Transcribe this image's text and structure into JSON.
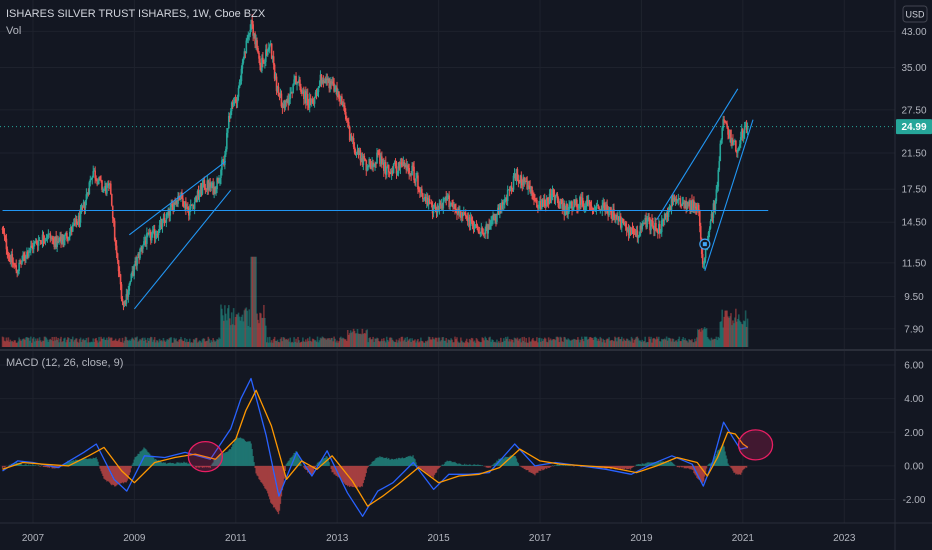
{
  "header": {
    "title": "ISHARES SILVER TRUST ISHARES, 1W, Cboe BZX",
    "volume_label": "Vol",
    "currency": "USD"
  },
  "macd_panel": {
    "label": "MACD (12, 26, close, 9)"
  },
  "current_price": {
    "value": "24.99",
    "numeric": 24.99,
    "color": "#26a69a"
  },
  "colors": {
    "background": "#131722",
    "up": "#26a69a",
    "down": "#ef5350",
    "macd_line": "#2962ff",
    "signal_line": "#ff9800",
    "trendline": "#2196f3",
    "highlight": "#e91e63"
  },
  "chart_data": [
    {
      "type": "candlestick",
      "title": "ISHARES SILVER TRUST ISHARES, 1W, Cboe BZX",
      "y_scale": "log",
      "ylim": [
        7.5,
        48
      ],
      "xlim": [
        2006.35,
        2024.0
      ],
      "x_ticks": [
        "2007",
        "2009",
        "2011",
        "2013",
        "2015",
        "2017",
        "2019",
        "2021",
        "2023"
      ],
      "x_tick_values": [
        2007,
        2009,
        2011,
        2013,
        2015,
        2017,
        2019,
        2021,
        2023
      ],
      "y_ticks": [
        "43.00",
        "35.00",
        "27.50",
        "21.50",
        "17.50",
        "14.50",
        "11.50",
        "9.50",
        "7.90"
      ],
      "y_tick_values": [
        43.0,
        35.0,
        27.5,
        21.5,
        17.5,
        14.5,
        11.5,
        9.5,
        7.9
      ],
      "price_path": [
        [
          2006.4,
          14.0
        ],
        [
          2006.55,
          12.0
        ],
        [
          2006.7,
          11.0
        ],
        [
          2006.9,
          12.2
        ],
        [
          2007.1,
          13.0
        ],
        [
          2007.3,
          13.5
        ],
        [
          2007.5,
          12.8
        ],
        [
          2007.7,
          13.5
        ],
        [
          2007.9,
          14.5
        ],
        [
          2008.0,
          15.5
        ],
        [
          2008.2,
          19.5
        ],
        [
          2008.4,
          17.5
        ],
        [
          2008.55,
          17.5
        ],
        [
          2008.65,
          12.5
        ],
        [
          2008.8,
          9.0
        ],
        [
          2009.0,
          11.0
        ],
        [
          2009.2,
          13.0
        ],
        [
          2009.4,
          13.5
        ],
        [
          2009.6,
          14.5
        ],
        [
          2009.9,
          17.0
        ],
        [
          2010.1,
          15.5
        ],
        [
          2010.4,
          18.0
        ],
        [
          2010.6,
          17.5
        ],
        [
          2010.8,
          21.0
        ],
        [
          2010.9,
          27.0
        ],
        [
          2011.05,
          30.0
        ],
        [
          2011.2,
          38.0
        ],
        [
          2011.32,
          46.0
        ],
        [
          2011.5,
          35.0
        ],
        [
          2011.7,
          40.0
        ],
        [
          2011.85,
          30.0
        ],
        [
          2012.0,
          28.0
        ],
        [
          2012.2,
          33.0
        ],
        [
          2012.5,
          28.0
        ],
        [
          2012.7,
          33.0
        ],
        [
          2012.9,
          32.0
        ],
        [
          2013.1,
          29.0
        ],
        [
          2013.3,
          23.0
        ],
        [
          2013.6,
          20.0
        ],
        [
          2013.8,
          21.0
        ],
        [
          2014.0,
          19.5
        ],
        [
          2014.3,
          20.0
        ],
        [
          2014.5,
          19.5
        ],
        [
          2014.7,
          17.0
        ],
        [
          2014.9,
          15.5
        ],
        [
          2015.2,
          16.5
        ],
        [
          2015.5,
          15.0
        ],
        [
          2015.8,
          14.0
        ],
        [
          2016.0,
          14.0
        ],
        [
          2016.3,
          16.0
        ],
        [
          2016.55,
          19.0
        ],
        [
          2016.8,
          17.5
        ],
        [
          2017.0,
          16.0
        ],
        [
          2017.3,
          17.0
        ],
        [
          2017.5,
          15.5
        ],
        [
          2017.8,
          16.2
        ],
        [
          2018.0,
          16.0
        ],
        [
          2018.3,
          15.8
        ],
        [
          2018.6,
          14.5
        ],
        [
          2018.9,
          13.5
        ],
        [
          2019.1,
          14.5
        ],
        [
          2019.4,
          14.0
        ],
        [
          2019.6,
          16.0
        ],
        [
          2019.75,
          16.5
        ],
        [
          2020.0,
          16.0
        ],
        [
          2020.15,
          15.5
        ],
        [
          2020.22,
          11.3
        ],
        [
          2020.35,
          14.0
        ],
        [
          2020.5,
          17.0
        ],
        [
          2020.62,
          26.0
        ],
        [
          2020.75,
          24.0
        ],
        [
          2020.9,
          22.0
        ],
        [
          2021.0,
          24.0
        ],
        [
          2021.1,
          25.0
        ]
      ],
      "current_price": 24.99,
      "horizontal_line": 15.5,
      "trendlines": [
        {
          "from": [
            2009.0,
            8.85
          ],
          "to": [
            2010.9,
            17.4
          ]
        },
        {
          "from": [
            2008.9,
            13.5
          ],
          "to": [
            2010.8,
            20.5
          ]
        },
        {
          "from": [
            2006.4,
            15.5
          ],
          "to": [
            2021.5,
            15.5
          ]
        },
        {
          "from": [
            2019.3,
            14.7
          ],
          "to": [
            2020.9,
            31.0
          ]
        },
        {
          "from": [
            2020.25,
            11.0
          ],
          "to": [
            2021.2,
            26.0
          ]
        }
      ],
      "annotations": [
        {
          "type": "marker",
          "x": 2020.25,
          "y": 12.8
        }
      ]
    },
    {
      "type": "line",
      "title": "MACD (12, 26, close, 9)",
      "ylim": [
        -3.1,
        6.3
      ],
      "y_ticks": [
        "6.00",
        "4.00",
        "2.00",
        "0.00",
        "-2.00"
      ],
      "y_tick_values": [
        6.0,
        4.0,
        2.0,
        0.0,
        -2.0
      ],
      "series": [
        {
          "name": "MACD",
          "color": "#2962ff",
          "points": [
            [
              2006.4,
              -0.3
            ],
            [
              2006.7,
              0.3
            ],
            [
              2007.0,
              0.2
            ],
            [
              2007.5,
              -0.1
            ],
            [
              2008.0,
              0.8
            ],
            [
              2008.25,
              1.3
            ],
            [
              2008.6,
              -0.8
            ],
            [
              2008.85,
              -1.5
            ],
            [
              2009.2,
              0.6
            ],
            [
              2009.6,
              0.5
            ],
            [
              2010.0,
              0.8
            ],
            [
              2010.5,
              0.4
            ],
            [
              2010.9,
              2.2
            ],
            [
              2011.1,
              4.0
            ],
            [
              2011.3,
              5.2
            ],
            [
              2011.6,
              1.8
            ],
            [
              2011.85,
              -1.8
            ],
            [
              2012.2,
              0.8
            ],
            [
              2012.5,
              -0.6
            ],
            [
              2012.8,
              0.9
            ],
            [
              2013.2,
              -1.6
            ],
            [
              2013.5,
              -3.0
            ],
            [
              2013.8,
              -1.5
            ],
            [
              2014.1,
              -1.0
            ],
            [
              2014.5,
              0.2
            ],
            [
              2014.9,
              -1.4
            ],
            [
              2015.2,
              -0.5
            ],
            [
              2015.6,
              -0.5
            ],
            [
              2016.0,
              -0.4
            ],
            [
              2016.5,
              1.3
            ],
            [
              2016.9,
              0.0
            ],
            [
              2017.3,
              0.2
            ],
            [
              2017.8,
              0.0
            ],
            [
              2018.3,
              -0.2
            ],
            [
              2018.8,
              -0.5
            ],
            [
              2019.2,
              0.1
            ],
            [
              2019.6,
              0.6
            ],
            [
              2020.0,
              0.1
            ],
            [
              2020.22,
              -1.2
            ],
            [
              2020.4,
              0.2
            ],
            [
              2020.62,
              2.6
            ],
            [
              2020.8,
              1.7
            ],
            [
              2020.95,
              1.0
            ],
            [
              2021.1,
              1.1
            ]
          ]
        },
        {
          "name": "Signal",
          "color": "#ff9800",
          "points": [
            [
              2006.4,
              -0.2
            ],
            [
              2006.8,
              0.2
            ],
            [
              2007.2,
              0.1
            ],
            [
              2007.7,
              0.0
            ],
            [
              2008.1,
              0.6
            ],
            [
              2008.4,
              1.1
            ],
            [
              2008.75,
              -0.3
            ],
            [
              2009.0,
              -1.0
            ],
            [
              2009.4,
              0.2
            ],
            [
              2009.8,
              0.5
            ],
            [
              2010.2,
              0.7
            ],
            [
              2010.6,
              0.4
            ],
            [
              2011.0,
              1.6
            ],
            [
              2011.2,
              3.3
            ],
            [
              2011.4,
              4.5
            ],
            [
              2011.7,
              2.4
            ],
            [
              2012.0,
              -0.8
            ],
            [
              2012.3,
              0.3
            ],
            [
              2012.6,
              -0.2
            ],
            [
              2012.9,
              0.6
            ],
            [
              2013.3,
              -0.9
            ],
            [
              2013.6,
              -2.4
            ],
            [
              2013.9,
              -1.8
            ],
            [
              2014.2,
              -1.1
            ],
            [
              2014.6,
              -0.1
            ],
            [
              2015.0,
              -1.0
            ],
            [
              2015.4,
              -0.6
            ],
            [
              2015.8,
              -0.5
            ],
            [
              2016.2,
              -0.1
            ],
            [
              2016.6,
              1.0
            ],
            [
              2017.0,
              0.3
            ],
            [
              2017.4,
              0.1
            ],
            [
              2017.9,
              0.0
            ],
            [
              2018.4,
              -0.1
            ],
            [
              2018.9,
              -0.4
            ],
            [
              2019.3,
              0.0
            ],
            [
              2019.7,
              0.5
            ],
            [
              2020.1,
              0.2
            ],
            [
              2020.3,
              -0.6
            ],
            [
              2020.5,
              0.5
            ],
            [
              2020.7,
              2.0
            ],
            [
              2020.85,
              1.9
            ],
            [
              2021.0,
              1.3
            ],
            [
              2021.1,
              1.1
            ]
          ]
        }
      ],
      "highlights": [
        {
          "x": 2010.4,
          "y": 0.55
        },
        {
          "x": 2021.25,
          "y": 1.25
        }
      ]
    }
  ]
}
